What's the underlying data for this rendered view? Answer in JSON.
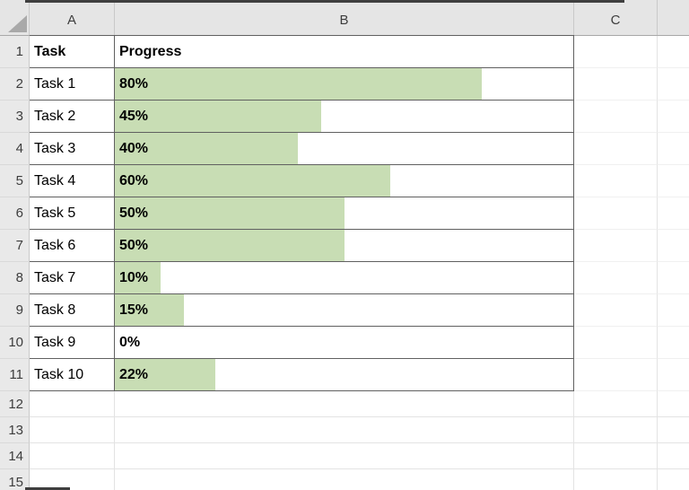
{
  "grid": {
    "column_headers": [
      "A",
      "B",
      "C",
      ""
    ],
    "row_numbers": [
      "1",
      "2",
      "3",
      "4",
      "5",
      "6",
      "7",
      "8",
      "9",
      "10",
      "11",
      "12",
      "13",
      "14",
      "15"
    ]
  },
  "table": {
    "columns": {
      "task": "Task",
      "progress": "Progress"
    },
    "rows": [
      {
        "task": "Task 1",
        "label": "80%",
        "value": 80
      },
      {
        "task": "Task 2",
        "label": "45%",
        "value": 45
      },
      {
        "task": "Task 3",
        "label": "40%",
        "value": 40
      },
      {
        "task": "Task 4",
        "label": "60%",
        "value": 60
      },
      {
        "task": "Task 5",
        "label": "50%",
        "value": 50
      },
      {
        "task": "Task 6",
        "label": "50%",
        "value": 50
      },
      {
        "task": "Task 7",
        "label": "10%",
        "value": 10
      },
      {
        "task": "Task 8",
        "label": "15%",
        "value": 15
      },
      {
        "task": "Task 9",
        "label": "0%",
        "value": 0
      },
      {
        "task": "Task 10",
        "label": "22%",
        "value": 22
      }
    ]
  },
  "colors": {
    "data_bar": "#c8ddb4",
    "table_border": "#606060",
    "header_bg": "#e5e5e5",
    "gridline": "#e3e3e3"
  },
  "chart_data": {
    "type": "bar",
    "orientation": "horizontal",
    "categories": [
      "Task 1",
      "Task 2",
      "Task 3",
      "Task 4",
      "Task 5",
      "Task 6",
      "Task 7",
      "Task 8",
      "Task 9",
      "Task 10"
    ],
    "values": [
      80,
      45,
      40,
      60,
      50,
      50,
      10,
      15,
      0,
      22
    ],
    "value_labels": [
      "80%",
      "45%",
      "40%",
      "60%",
      "50%",
      "50%",
      "10%",
      "15%",
      "0%",
      "22%"
    ],
    "title": "",
    "xlabel": "Progress",
    "ylabel": "Task",
    "value_range": [
      0,
      100
    ],
    "grid": false,
    "legend": false
  }
}
